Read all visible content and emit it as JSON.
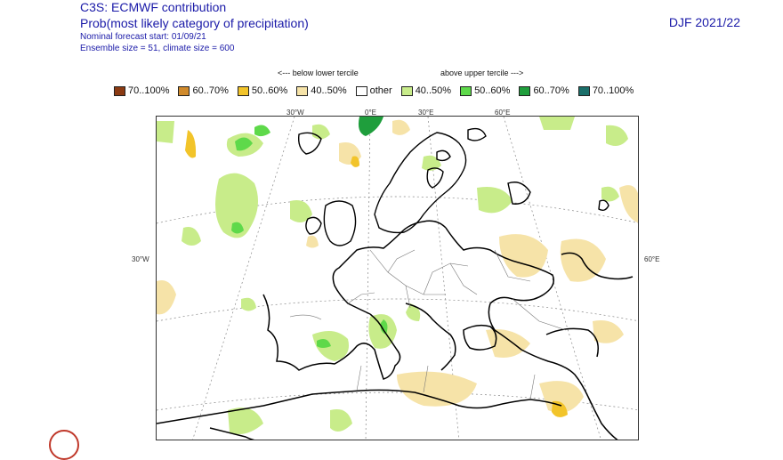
{
  "header": {
    "line1": "C3S: ECMWF contribution",
    "line2": "Prob(most likely category of precipitation)",
    "line3": "Nominal forecast start: 01/09/21",
    "line4": "Ensemble size = 51, climate size = 600",
    "season": "DJF 2021/22"
  },
  "tercile_labels": {
    "below": "<--- below lower tercile",
    "above": "above upper tercile --->"
  },
  "legend": [
    {
      "label": "70..100%",
      "color": "#8b3a12"
    },
    {
      "label": "60..70%",
      "color": "#d08a2c"
    },
    {
      "label": "50..60%",
      "color": "#f2c42a"
    },
    {
      "label": "40..50%",
      "color": "#f6e3a8"
    },
    {
      "label": "other",
      "color": "#ffffff"
    },
    {
      "label": "40..50%",
      "color": "#c8ec8a"
    },
    {
      "label": "50..60%",
      "color": "#5ed94a"
    },
    {
      "label": "60..70%",
      "color": "#1f9e3c"
    },
    {
      "label": "70..100%",
      "color": "#1a6f6a"
    }
  ],
  "map_labels": {
    "lon_30w": "30°W",
    "lon_0": "0°E",
    "lon_30e": "30°E",
    "lon_60e": "60°E",
    "left_30w": "30°W",
    "right_60e": "60°E"
  },
  "colors": {
    "title": "#1a1aa8",
    "coast": "#000000",
    "grid": "#888888"
  }
}
